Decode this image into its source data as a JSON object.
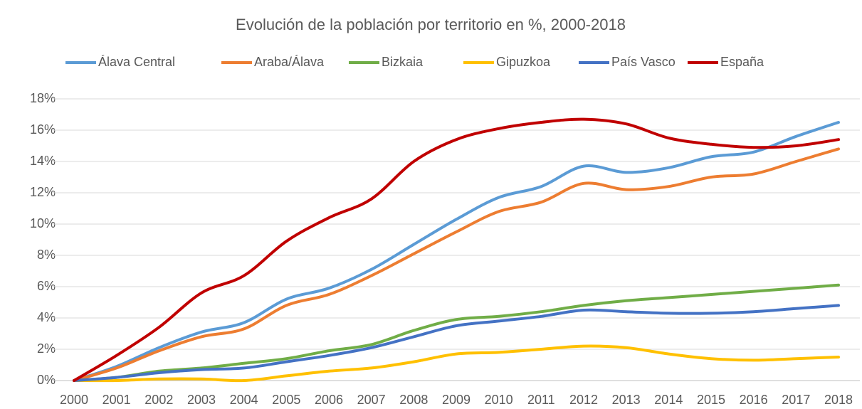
{
  "chart_data": {
    "type": "line",
    "title": "Evolución de la población por territorio en %, 2000-2018",
    "categories": [
      "2000",
      "2001",
      "2002",
      "2003",
      "2004",
      "2005",
      "2006",
      "2007",
      "2008",
      "2009",
      "2010",
      "2011",
      "2012",
      "2013",
      "2014",
      "2015",
      "2016",
      "2017",
      "2018"
    ],
    "series": [
      {
        "name": "Álava Central",
        "color": "#5b9bd5",
        "values": [
          0,
          0.9,
          2.1,
          3.1,
          3.7,
          5.2,
          5.9,
          7.1,
          8.7,
          10.3,
          11.7,
          12.4,
          13.7,
          13.3,
          13.6,
          14.3,
          14.6,
          15.6,
          16.5
        ]
      },
      {
        "name": "Araba/Álava",
        "color": "#ed7d31",
        "values": [
          0,
          0.8,
          1.9,
          2.8,
          3.3,
          4.8,
          5.5,
          6.7,
          8.1,
          9.5,
          10.8,
          11.4,
          12.6,
          12.2,
          12.4,
          13.0,
          13.2,
          14.0,
          14.8
        ]
      },
      {
        "name": "Bizkaia",
        "color": "#70ad47",
        "values": [
          0,
          0.2,
          0.6,
          0.8,
          1.1,
          1.4,
          1.9,
          2.3,
          3.2,
          3.9,
          4.1,
          4.4,
          4.8,
          5.1,
          5.3,
          5.5,
          5.7,
          5.9,
          6.1
        ]
      },
      {
        "name": "Gipuzkoa",
        "color": "#ffc000",
        "values": [
          0,
          0.0,
          0.1,
          0.1,
          0.0,
          0.3,
          0.6,
          0.8,
          1.2,
          1.7,
          1.8,
          2.0,
          2.2,
          2.1,
          1.7,
          1.4,
          1.3,
          1.4,
          1.5
        ]
      },
      {
        "name": "País Vasco",
        "color": "#4472c4",
        "values": [
          0,
          0.2,
          0.5,
          0.7,
          0.8,
          1.2,
          1.6,
          2.1,
          2.8,
          3.5,
          3.8,
          4.1,
          4.5,
          4.4,
          4.3,
          4.3,
          4.4,
          4.6,
          4.8
        ]
      },
      {
        "name": "España",
        "color": "#c00000",
        "values": [
          0,
          1.6,
          3.4,
          5.6,
          6.7,
          8.9,
          10.4,
          11.6,
          14.0,
          15.4,
          16.1,
          16.5,
          16.7,
          16.4,
          15.5,
          15.1,
          14.9,
          15.0,
          15.4
        ]
      }
    ],
    "ylim": [
      0,
      18
    ],
    "yticks": [
      {
        "value": 0,
        "label": "0%"
      },
      {
        "value": 2,
        "label": "2%"
      },
      {
        "value": 4,
        "label": "4%"
      },
      {
        "value": 6,
        "label": "6%"
      },
      {
        "value": 8,
        "label": "8%"
      },
      {
        "value": 10,
        "label": "10%"
      },
      {
        "value": 12,
        "label": "12%"
      },
      {
        "value": 14,
        "label": "14%"
      },
      {
        "value": 16,
        "label": "16%"
      },
      {
        "value": 18,
        "label": "18%"
      }
    ],
    "grid": true,
    "legend": "top"
  }
}
